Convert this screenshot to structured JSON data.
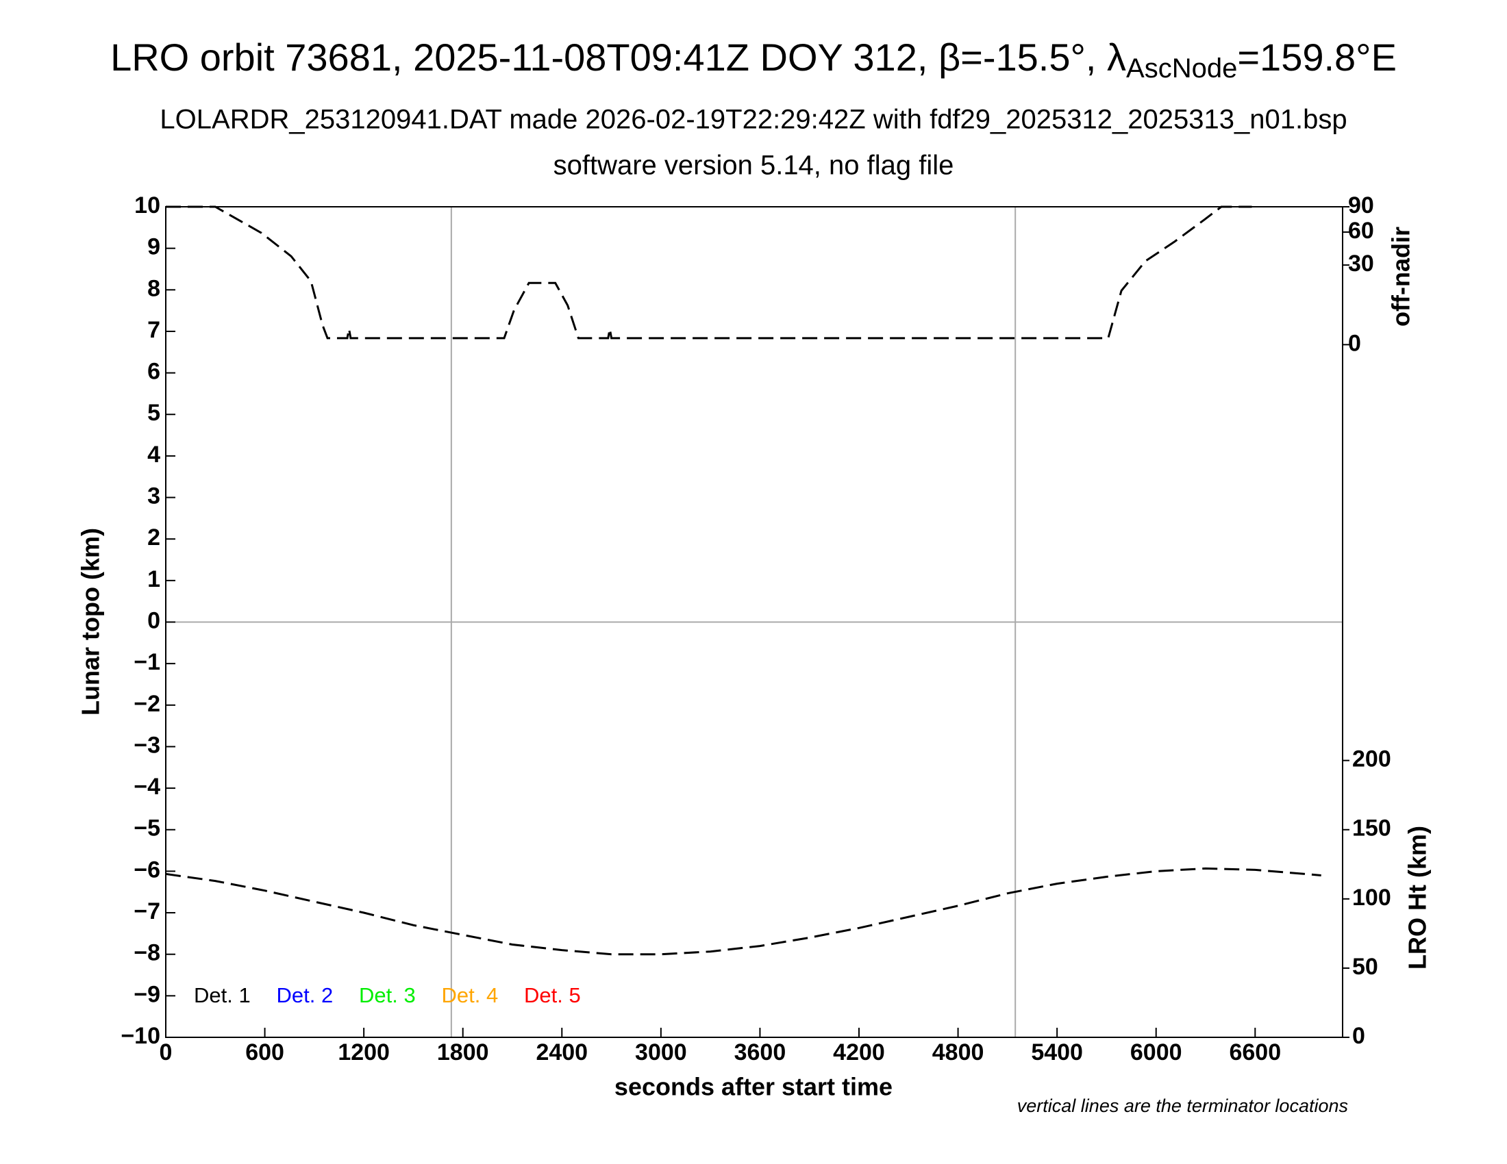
{
  "chart_data": {
    "type": "line",
    "title": {
      "text": "LRO orbit 73681, 2025-11-08T09:41Z DOY 312, β=-15.5°, λ",
      "subscript": "AscNode",
      "after": "=159.8°E"
    },
    "subtitles": [
      "LOLARDR_253120941.DAT made 2026-02-19T22:29:42Z with fdf29_2025312_2025313_n01.bsp",
      "software version 5.14, no flag file"
    ],
    "xlabel": "seconds after start time",
    "ylabel": "Lunar topo (km)",
    "y2label": "off-nadir",
    "y3label": "LRO Ht (km)",
    "note": "vertical lines are the terminator locations",
    "xlim": [
      0,
      7130
    ],
    "xticks": [
      0,
      600,
      1200,
      1800,
      2400,
      3000,
      3600,
      4200,
      4800,
      5400,
      6000,
      6600
    ],
    "ylim": [
      -10,
      10
    ],
    "yticks": [
      {
        "value": -10,
        "label": "−10"
      },
      {
        "value": -9,
        "label": "−9"
      },
      {
        "value": -8,
        "label": "−8"
      },
      {
        "value": -7,
        "label": "−7"
      },
      {
        "value": -6,
        "label": "−6"
      },
      {
        "value": -5,
        "label": "−5"
      },
      {
        "value": -4,
        "label": "−4"
      },
      {
        "value": -3,
        "label": "−3"
      },
      {
        "value": -2,
        "label": "−2"
      },
      {
        "value": -1,
        "label": "−1"
      },
      0,
      1,
      2,
      3,
      4,
      5,
      6,
      7,
      8,
      9,
      10
    ],
    "y2lim": [
      0,
      90
    ],
    "y2ticks": [
      0,
      30,
      60,
      90
    ],
    "y2scale": "sqrt",
    "y3lim": [
      0,
      600
    ],
    "y3ticks": [
      0,
      50,
      100,
      150,
      200
    ],
    "vlines": [
      1730,
      5147
    ],
    "hlines": [
      0
    ],
    "legend": [
      {
        "label": "Det. 1",
        "color": "#000000"
      },
      {
        "label": "Det. 2",
        "color": "#0000ff"
      },
      {
        "label": "Det. 3",
        "color": "#00ee00"
      },
      {
        "label": "Det. 4",
        "color": "#ffa500"
      },
      {
        "label": "Det. 5",
        "color": "#ff0000"
      }
    ],
    "series": [
      {
        "axis": "y2",
        "color": "#000000",
        "x": [
          0,
          300,
          580,
          760,
          880,
          950,
          980,
          1100,
          1110,
          1120,
          2050,
          2110,
          2200,
          2290,
          2360,
          2435,
          2500,
          2680,
          2690,
          2700,
          5710,
          5790,
          5935,
          6110,
          6290,
          6395,
          6580
        ],
        "values": [
          90,
          90,
          59,
          37,
          19,
          1.8,
          0.2,
          0.2,
          1.2,
          0.2,
          0.2,
          5.6,
          18,
          18,
          18,
          7.3,
          0.2,
          0.2,
          1.2,
          0.2,
          0.2,
          13.8,
          33,
          50,
          73.6,
          90,
          90
        ]
      },
      {
        "axis": "y3",
        "color": "#000000",
        "x": [
          0,
          300,
          600,
          900,
          1200,
          1500,
          1800,
          2100,
          2400,
          2700,
          3000,
          3300,
          3600,
          3900,
          4200,
          4500,
          4800,
          5100,
          5400,
          5700,
          6000,
          6300,
          6600,
          6900,
          7000
        ],
        "values": [
          118,
          113,
          106,
          98,
          90,
          81,
          74,
          67,
          63,
          60,
          60,
          62,
          66,
          72,
          79,
          87,
          95,
          104,
          111,
          116,
          120,
          122,
          121,
          118,
          117
        ]
      }
    ]
  }
}
